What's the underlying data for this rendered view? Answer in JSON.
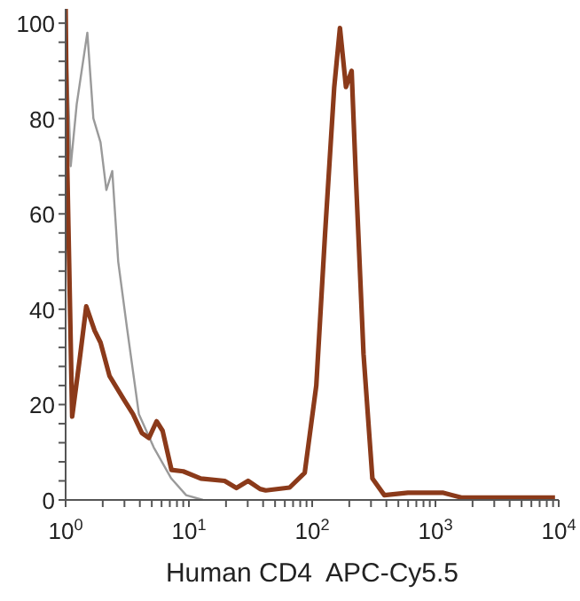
{
  "chart_data": {
    "type": "line",
    "xlabel": "Human CD4  APC-Cy5.5",
    "log": "x",
    "xlim": [
      1,
      10000
    ],
    "ylim": [
      0,
      103
    ],
    "xticks": [
      {
        "value": 1,
        "label": "10$^{0}$"
      },
      {
        "value": 2,
        "label": null
      },
      {
        "value": 3,
        "label": null
      },
      {
        "value": 4,
        "label": null
      },
      {
        "value": 5,
        "label": null
      },
      {
        "value": 6,
        "label": null
      },
      {
        "value": 7,
        "label": null
      },
      {
        "value": 8,
        "label": null
      },
      {
        "value": 9,
        "label": null
      },
      {
        "value": 10,
        "label": "10$^{1}$"
      },
      {
        "value": 20,
        "label": null
      },
      {
        "value": 30,
        "label": null
      },
      {
        "value": 40,
        "label": null
      },
      {
        "value": 50,
        "label": null
      },
      {
        "value": 60,
        "label": null
      },
      {
        "value": 70,
        "label": null
      },
      {
        "value": 80,
        "label": null
      },
      {
        "value": 90,
        "label": null
      },
      {
        "value": 100,
        "label": "10$^{2}$"
      },
      {
        "value": 200,
        "label": null
      },
      {
        "value": 300,
        "label": null
      },
      {
        "value": 400,
        "label": null
      },
      {
        "value": 500,
        "label": null
      },
      {
        "value": 600,
        "label": null
      },
      {
        "value": 700,
        "label": null
      },
      {
        "value": 800,
        "label": null
      },
      {
        "value": 900,
        "label": null
      },
      {
        "value": 1000,
        "label": "10$^{3}$"
      },
      {
        "value": 2000,
        "label": null
      },
      {
        "value": 3000,
        "label": null
      },
      {
        "value": 4000,
        "label": null
      },
      {
        "value": 5000,
        "label": null
      },
      {
        "value": 6000,
        "label": null
      },
      {
        "value": 7000,
        "label": null
      },
      {
        "value": 8000,
        "label": null
      },
      {
        "value": 9000,
        "label": null
      },
      {
        "value": 10000,
        "label": "10$^{4}$"
      }
    ],
    "yticks": [
      0,
      {
        "value": 4,
        "label": null
      },
      {
        "value": 8,
        "label": null
      },
      {
        "value": 12,
        "label": null
      },
      {
        "value": 16,
        "label": null
      },
      20,
      {
        "value": 24,
        "label": null
      },
      {
        "value": 28,
        "label": null
      },
      {
        "value": 32,
        "label": null
      },
      {
        "value": 36,
        "label": null
      },
      40,
      {
        "value": 44,
        "label": null
      },
      {
        "value": 48,
        "label": null
      },
      {
        "value": 52,
        "label": null
      },
      {
        "value": 56,
        "label": null
      },
      60,
      {
        "value": 64,
        "label": null
      },
      {
        "value": 68,
        "label": null
      },
      {
        "value": 72,
        "label": null
      },
      {
        "value": 76,
        "label": null
      },
      80,
      {
        "value": 84,
        "label": null
      },
      {
        "value": 88,
        "label": null
      },
      {
        "value": 92,
        "label": null
      },
      {
        "value": 96,
        "label": null
      },
      100
    ],
    "marker": "none",
    "line_style": "solid",
    "series": [
      {
        "color": "#9a9a9a",
        "x": [
          1,
          1.1,
          1.23,
          1.5,
          1.68,
          1.92,
          2.14,
          2.39,
          2.67,
          3.15,
          3.93,
          5.19,
          7.2,
          9.5,
          13
        ],
        "values": [
          100,
          70,
          83,
          98,
          80,
          75,
          65,
          69,
          50,
          36,
          18,
          11,
          4.5,
          1,
          0
        ]
      },
      {
        "color": "#8b3a1a",
        "x": [
          1,
          1.03,
          1.13,
          1.3,
          1.47,
          1.72,
          1.92,
          2.27,
          2.98,
          3.52,
          4.16,
          4.74,
          5.47,
          6.12,
          7.22,
          9,
          12.5,
          19.5,
          24.3,
          30.2,
          37.8,
          42,
          65.6,
          87,
          108,
          127,
          151,
          168,
          188,
          209,
          226,
          261,
          308,
          385,
          598,
          1160,
          1620,
          9330
        ],
        "values": [
          103,
          70,
          17.5,
          29.5,
          40.6,
          35.5,
          33,
          26,
          21,
          18,
          14,
          13,
          16.5,
          14.5,
          6.3,
          6,
          4.5,
          4,
          2.5,
          4,
          2.3,
          2,
          2.6,
          5.7,
          24,
          55.5,
          86.6,
          99,
          86.6,
          90,
          68,
          30.6,
          4.5,
          1,
          1.5,
          1.5,
          0.5,
          0.5
        ]
      }
    ]
  }
}
